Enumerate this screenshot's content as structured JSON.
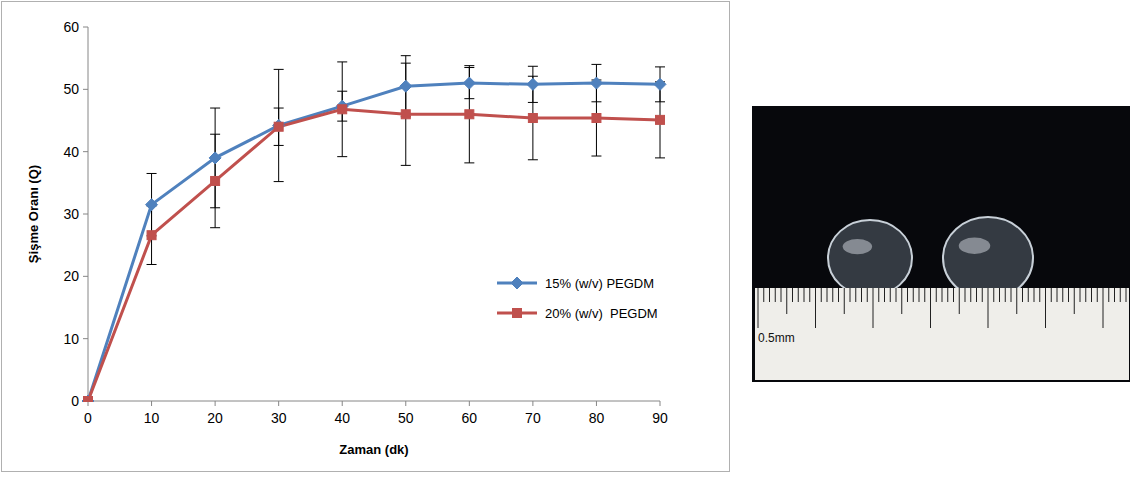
{
  "chart_data": {
    "type": "line",
    "x_label": "Zaman (dk)",
    "y_label": "Şişme Oranı (Q)",
    "x": [
      0,
      10,
      20,
      30,
      40,
      50,
      60,
      70,
      80,
      90
    ],
    "series": [
      {
        "name": "15% (w/v) PEGDM",
        "color": "#4f81bd",
        "marker": "diamond",
        "line_style": "solid",
        "values": [
          0,
          31.5,
          39,
          44.2,
          47.3,
          50.5,
          51,
          50.8,
          51,
          50.8
        ],
        "errors": [
          0,
          5,
          8,
          9,
          2.4,
          4.9,
          2.5,
          2.9,
          3,
          2.8
        ]
      },
      {
        "name": "20% (w/v)  PEGDM",
        "color": "#c0504d",
        "marker": "square",
        "line_style": "solid",
        "values": [
          0,
          26.6,
          35.3,
          44,
          46.8,
          46,
          46,
          45.4,
          45.4,
          45.1
        ],
        "errors": [
          0,
          4.7,
          7.5,
          3,
          7.6,
          8.2,
          7.8,
          6.7,
          6.1,
          6.1
        ]
      }
    ],
    "xlim": [
      0,
      90
    ],
    "xticks": [
      0,
      10,
      20,
      30,
      40,
      50,
      60,
      70,
      80,
      90
    ],
    "ylim": [
      0,
      60
    ],
    "yticks": [
      0,
      10,
      20,
      30,
      40,
      50,
      60
    ],
    "grid": false,
    "legend": "lower right"
  },
  "photo": {
    "ruler_label": "0.5mm"
  }
}
